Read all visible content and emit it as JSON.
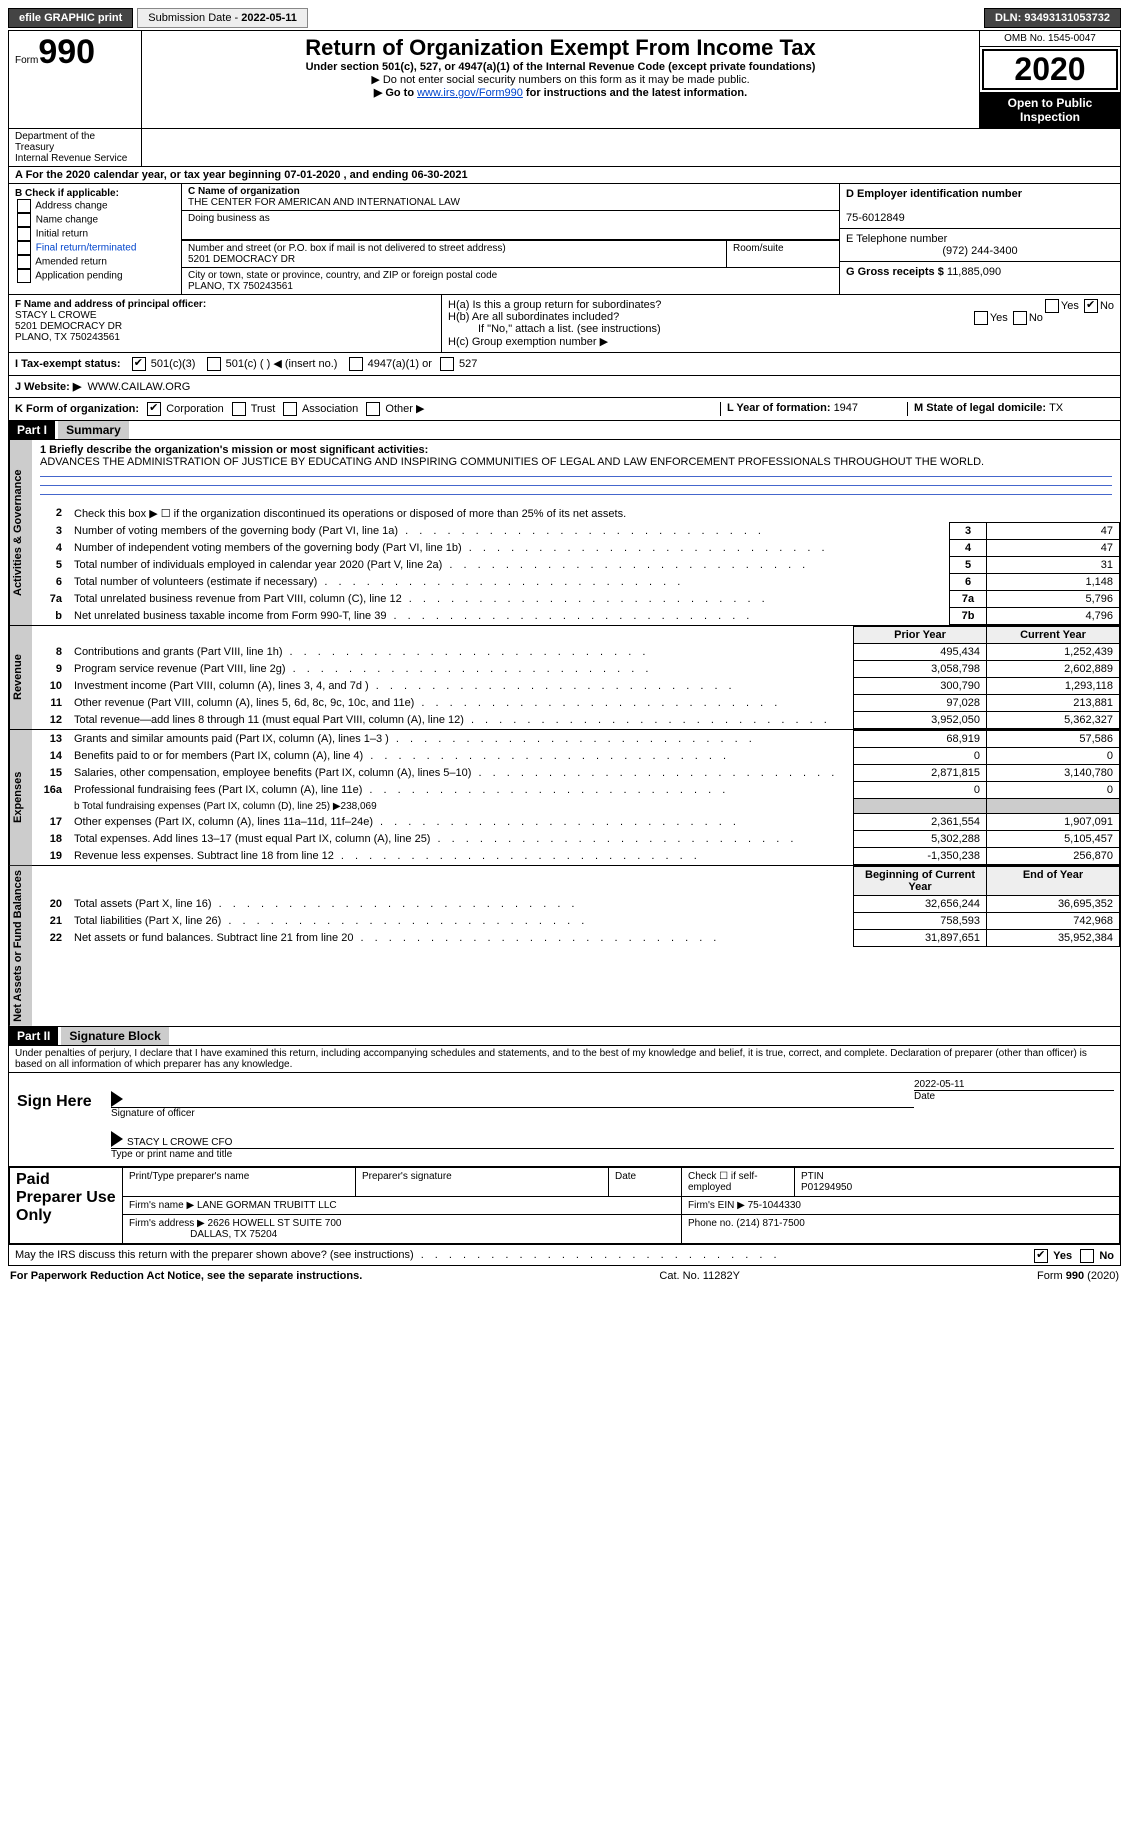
{
  "topbar": {
    "efile": "efile GRAPHIC print",
    "sub_label": "Submission Date - ",
    "sub_date": "2022-05-11",
    "dln_label": "DLN: ",
    "dln": "93493131053732"
  },
  "header": {
    "form_word": "Form",
    "form_num": "990",
    "dept": "Department of the Treasury\nInternal Revenue Service",
    "title": "Return of Organization Exempt From Income Tax",
    "subtitle": "Under section 501(c), 527, or 4947(a)(1) of the Internal Revenue Code (except private foundations)",
    "arrow1": "▶ Do not enter social security numbers on this form as it may be made public.",
    "arrow2_pre": "▶ Go to ",
    "arrow2_link": "www.irs.gov/Form990",
    "arrow2_post": " for instructions and the latest information.",
    "omb": "OMB No. 1545-0047",
    "year": "2020",
    "open": "Open to Public Inspection"
  },
  "period": {
    "text_a": "A For the 2020 calendar year, or tax year beginning ",
    "begin": "07-01-2020",
    "text_b": " , and ending ",
    "end": "06-30-2021"
  },
  "boxB": {
    "label": "B Check if applicable:",
    "items": [
      "Address change",
      "Name change",
      "Initial return",
      "Final return/terminated",
      "Amended return",
      "Application pending"
    ]
  },
  "boxC": {
    "name_label": "C Name of organization",
    "name": "THE CENTER FOR AMERICAN AND INTERNATIONAL LAW",
    "dba_label": "Doing business as",
    "street_label": "Number and street (or P.O. box if mail is not delivered to street address)",
    "street": "5201 DEMOCRACY DR",
    "suite_label": "Room/suite",
    "city_label": "City or town, state or province, country, and ZIP or foreign postal code",
    "city": "PLANO, TX  750243561"
  },
  "boxD": {
    "label": "D Employer identification number",
    "value": "75-6012849"
  },
  "boxE": {
    "label": "E Telephone number",
    "value": "(972) 244-3400"
  },
  "boxG": {
    "label": "G Gross receipts $ ",
    "value": "11,885,090"
  },
  "boxF": {
    "label": "F Name and address of principal officer:",
    "name": "STACY L CROWE",
    "street": "5201 DEMOCRACY DR",
    "city": "PLANO, TX  750243561"
  },
  "boxH": {
    "a_label": "H(a)  Is this a group return for subordinates?",
    "a_yes": "Yes",
    "a_no": "No",
    "b_label": "H(b)  Are all subordinates included?",
    "note": "If \"No,\" attach a list. (see instructions)",
    "c_label": "H(c)  Group exemption number ▶"
  },
  "boxI": {
    "label": "I  Tax-exempt status:",
    "opt1": "501(c)(3)",
    "opt2": "501(c) (   ) ◀ (insert no.)",
    "opt3": "4947(a)(1) or",
    "opt4": "527"
  },
  "boxJ": {
    "label": "J  Website: ▶",
    "value": "WWW.CAILAW.ORG"
  },
  "boxK": {
    "label": "K Form of organization:",
    "opts": [
      "Corporation",
      "Trust",
      "Association",
      "Other ▶"
    ]
  },
  "boxL": {
    "label": "L Year of formation: ",
    "value": "1947"
  },
  "boxM": {
    "label": "M State of legal domicile: ",
    "value": "TX"
  },
  "part1": {
    "hdr": "Part I",
    "title": "Summary",
    "side_gov": "Activities & Governance",
    "side_rev": "Revenue",
    "side_exp": "Expenses",
    "side_net": "Net Assets or Fund Balances",
    "l1_label": "1  Briefly describe the organization's mission or most significant activities:",
    "mission": "ADVANCES THE ADMINISTRATION OF JUSTICE BY EDUCATING AND INSPIRING COMMUNITIES OF LEGAL AND LAW ENFORCEMENT PROFESSIONALS THROUGHOUT THE WORLD.",
    "l2": "Check this box ▶ ☐  if the organization discontinued its operations or disposed of more than 25% of its net assets.",
    "lines_single": [
      {
        "n": "3",
        "d": "Number of voting members of the governing body (Part VI, line 1a)",
        "box": "3",
        "v": "47"
      },
      {
        "n": "4",
        "d": "Number of independent voting members of the governing body (Part VI, line 1b)",
        "box": "4",
        "v": "47"
      },
      {
        "n": "5",
        "d": "Total number of individuals employed in calendar year 2020 (Part V, line 2a)",
        "box": "5",
        "v": "31"
      },
      {
        "n": "6",
        "d": "Total number of volunteers (estimate if necessary)",
        "box": "6",
        "v": "1,148"
      },
      {
        "n": "7a",
        "d": "Total unrelated business revenue from Part VIII, column (C), line 12",
        "box": "7a",
        "v": "5,796"
      },
      {
        "n": "b",
        "d": "Net unrelated business taxable income from Form 990-T, line 39",
        "box": "7b",
        "v": "4,796"
      }
    ],
    "col_prior": "Prior Year",
    "col_curr": "Current Year",
    "lines_rev": [
      {
        "n": "8",
        "d": "Contributions and grants (Part VIII, line 1h)",
        "p": "495,434",
        "c": "1,252,439"
      },
      {
        "n": "9",
        "d": "Program service revenue (Part VIII, line 2g)",
        "p": "3,058,798",
        "c": "2,602,889"
      },
      {
        "n": "10",
        "d": "Investment income (Part VIII, column (A), lines 3, 4, and 7d )",
        "p": "300,790",
        "c": "1,293,118"
      },
      {
        "n": "11",
        "d": "Other revenue (Part VIII, column (A), lines 5, 6d, 8c, 9c, 10c, and 11e)",
        "p": "97,028",
        "c": "213,881"
      },
      {
        "n": "12",
        "d": "Total revenue—add lines 8 through 11 (must equal Part VIII, column (A), line 12)",
        "p": "3,952,050",
        "c": "5,362,327"
      }
    ],
    "lines_exp": [
      {
        "n": "13",
        "d": "Grants and similar amounts paid (Part IX, column (A), lines 1–3 )",
        "p": "68,919",
        "c": "57,586"
      },
      {
        "n": "14",
        "d": "Benefits paid to or for members (Part IX, column (A), line 4)",
        "p": "0",
        "c": "0"
      },
      {
        "n": "15",
        "d": "Salaries, other compensation, employee benefits (Part IX, column (A), lines 5–10)",
        "p": "2,871,815",
        "c": "3,140,780"
      },
      {
        "n": "16a",
        "d": "Professional fundraising fees (Part IX, column (A), line 11e)",
        "p": "0",
        "c": "0"
      }
    ],
    "l16b": "b  Total fundraising expenses (Part IX, column (D), line 25) ▶238,069",
    "lines_exp2": [
      {
        "n": "17",
        "d": "Other expenses (Part IX, column (A), lines 11a–11d, 11f–24e)",
        "p": "2,361,554",
        "c": "1,907,091"
      },
      {
        "n": "18",
        "d": "Total expenses. Add lines 13–17 (must equal Part IX, column (A), line 25)",
        "p": "5,302,288",
        "c": "5,105,457"
      },
      {
        "n": "19",
        "d": "Revenue less expenses. Subtract line 18 from line 12",
        "p": "-1,350,238",
        "c": "256,870"
      }
    ],
    "col_beg": "Beginning of Current Year",
    "col_end": "End of Year",
    "lines_net": [
      {
        "n": "20",
        "d": "Total assets (Part X, line 16)",
        "p": "32,656,244",
        "c": "36,695,352"
      },
      {
        "n": "21",
        "d": "Total liabilities (Part X, line 26)",
        "p": "758,593",
        "c": "742,968"
      },
      {
        "n": "22",
        "d": "Net assets or fund balances. Subtract line 21 from line 20",
        "p": "31,897,651",
        "c": "35,952,384"
      }
    ]
  },
  "part2": {
    "hdr": "Part II",
    "title": "Signature Block",
    "penalty": "Under penalties of perjury, I declare that I have examined this return, including accompanying schedules and statements, and to the best of my knowledge and belief, it is true, correct, and complete. Declaration of preparer (other than officer) is based on all information of which preparer has any knowledge.",
    "sign_here": "Sign Here",
    "sig_officer": "Signature of officer",
    "sig_date_label": "Date",
    "sig_date": "2022-05-11",
    "sig_name": "STACY L CROWE  CFO",
    "sig_name_label": "Type or print name and title",
    "paid": "Paid Preparer Use Only",
    "prep_name_label": "Print/Type preparer's name",
    "prep_sig_label": "Preparer's signature",
    "prep_date_label": "Date",
    "prep_check": "Check ☐ if self-employed",
    "ptin_label": "PTIN",
    "ptin": "P01294950",
    "firm_name_label": "Firm's name      ▶",
    "firm_name": "LANE GORMAN TRUBITT LLC",
    "firm_ein_label": "Firm's EIN ▶",
    "firm_ein": "75-1044330",
    "firm_addr_label": "Firm's address ▶",
    "firm_addr1": "2626 HOWELL ST SUITE 700",
    "firm_addr2": "DALLAS, TX  75204",
    "phone_label": "Phone no. ",
    "phone": "(214) 871-7500",
    "discuss": "May the IRS discuss this return with the preparer shown above? (see instructions)",
    "yes": "Yes",
    "no": "No"
  },
  "footer": {
    "pra": "For Paperwork Reduction Act Notice, see the separate instructions.",
    "cat": "Cat. No. 11282Y",
    "form": "Form 990 (2020)"
  }
}
